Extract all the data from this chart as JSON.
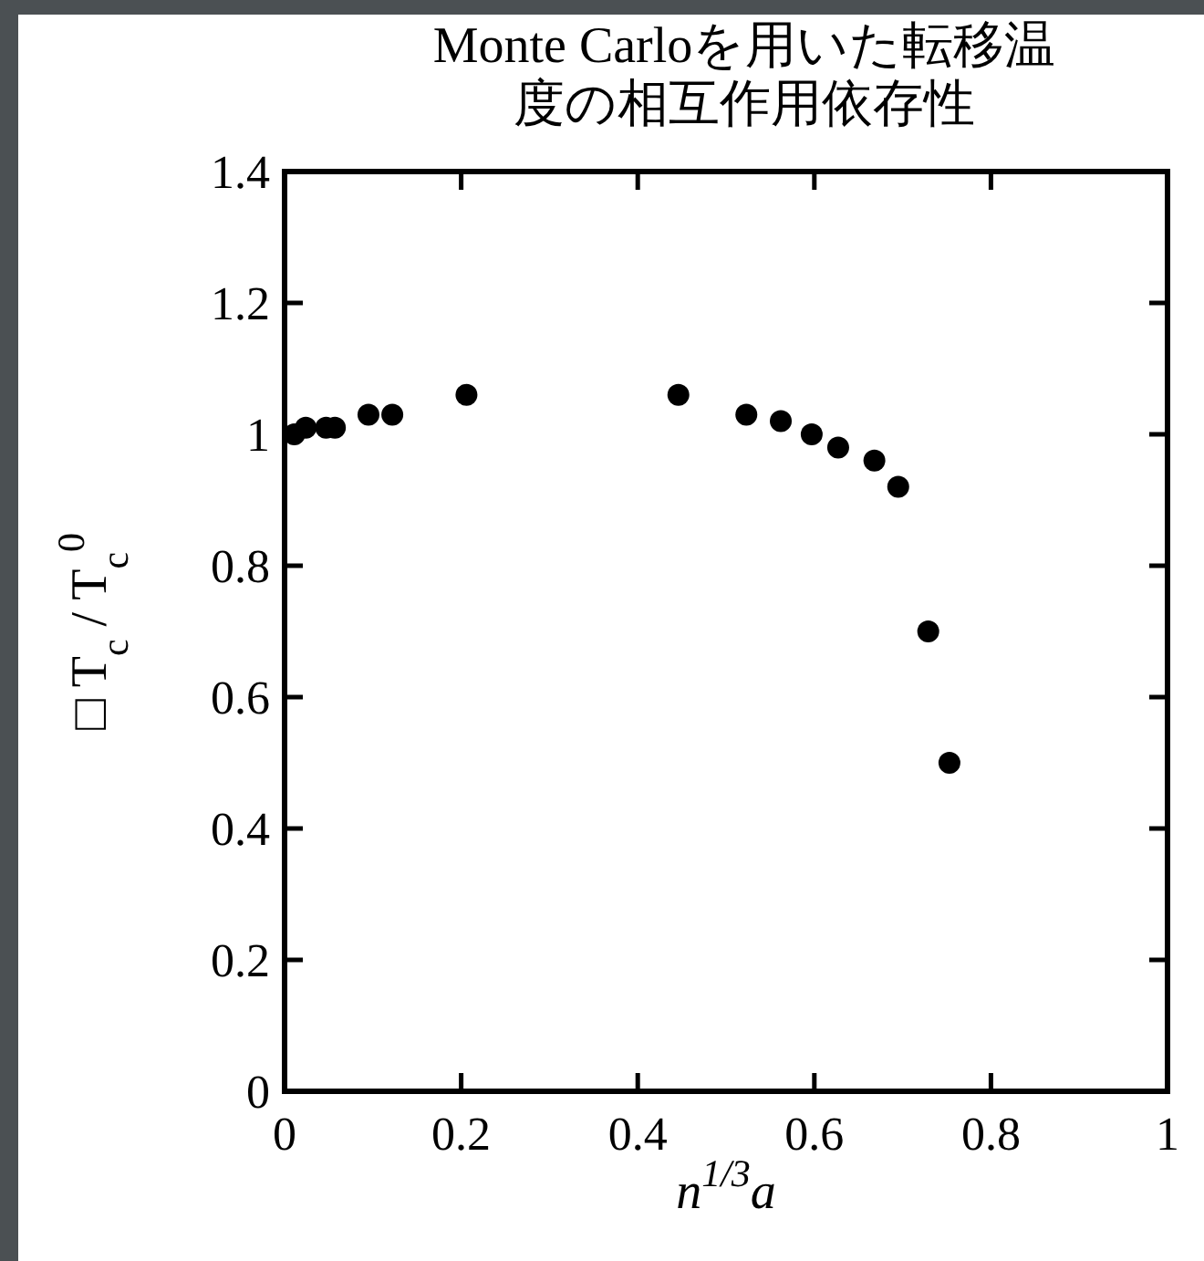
{
  "chart_data": {
    "type": "scatter",
    "title": "Monte Carloを用いた転移温度の相互作用依存性",
    "xlabel": "n$^{1/3}$a",
    "ylabel": "□ T$_{c}$ / T$_{c}$$^{0}$",
    "x": [
      0.011,
      0.024,
      0.047,
      0.057,
      0.095,
      0.122,
      0.206,
      0.446,
      0.523,
      0.562,
      0.597,
      0.627,
      0.668,
      0.695,
      0.729,
      0.753
    ],
    "values": [
      1.0,
      1.01,
      1.01,
      1.01,
      1.03,
      1.03,
      1.06,
      1.06,
      1.03,
      1.02,
      1.0,
      0.98,
      0.96,
      0.92,
      0.7,
      0.5
    ],
    "color": "#000000",
    "marker": "circle",
    "xlim": [
      0,
      1
    ],
    "ylim": [
      0,
      1.4
    ],
    "xticks": [
      0,
      0.2,
      0.4,
      0.6,
      0.8,
      1
    ],
    "yticks": [
      0,
      0.2,
      0.4,
      0.6,
      0.8,
      1,
      1.2,
      1.4
    ]
  }
}
